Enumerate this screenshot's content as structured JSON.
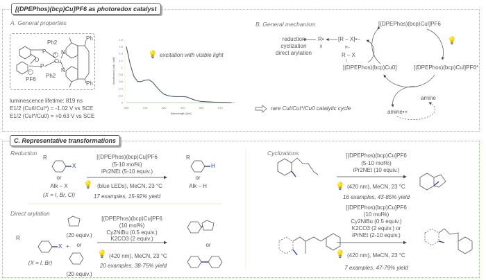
{
  "title": "[(DPEPhos)(bcp)Cu]PF6 as photoredox catalyst",
  "panelA": {
    "label": "A. General properties",
    "structure_labels": [
      "Ph2",
      "Ph2",
      "P",
      "P",
      "Cu",
      "O",
      "N",
      "N",
      "Ph",
      "Ph",
      "PF6",
      "+",
      "−"
    ],
    "lifetime": "luminescence lifetime: 819 ns",
    "e1": "E1/2 (CuII/CuI*) = -1.02 V vs SCE",
    "e2": "E1/2 (CuI*/Cu0) = +0.63 V vs SCE",
    "excitation": "excitation with visible light"
  },
  "chart_data": {
    "type": "line",
    "xlabel": "Wavelength [nm]",
    "ylabel": "Absorbance [arb. unit]",
    "xticks": [
      320,
      370,
      420,
      470,
      520,
      570
    ],
    "yticks": [
      "0",
      "0,2",
      "0,4",
      "0,6",
      "0,8",
      "1",
      "1,2",
      "1,4",
      "1,6",
      "1,8"
    ],
    "xlim": [
      320,
      610
    ],
    "ylim": [
      0,
      1.8
    ],
    "x": [
      320,
      330,
      340,
      350,
      360,
      370,
      380,
      390,
      400,
      410,
      420,
      430,
      440,
      450,
      460,
      470,
      480,
      490,
      500,
      510,
      520,
      540,
      560,
      580,
      600
    ],
    "y": [
      1.6,
      1.1,
      0.75,
      0.6,
      0.6,
      0.64,
      0.65,
      0.58,
      0.45,
      0.33,
      0.24,
      0.2,
      0.18,
      0.17,
      0.17,
      0.17,
      0.16,
      0.12,
      0.08,
      0.05,
      0.03,
      0.02,
      0.01,
      0.005,
      0
    ],
    "line_color": "#3c4a5a",
    "grid": false
  },
  "panelB": {
    "label": "B. General mechanism",
    "cu1": "[(DPEPhos)(bcp)CuI]PF6",
    "cu1_excited": "[(DPEPhos)(bcp)CuI]PF6*",
    "cu0": "[(DPEPhos)(bcp)Cu0]",
    "amine": "amine",
    "amine_radical": "amine•+",
    "rx": "R – X",
    "rx_radical": "[R – X]•−",
    "radical": "R•",
    "num_I": "I",
    "num_I_rad": "I•−",
    "num_II": "II",
    "outcomes": [
      "reduction",
      "cyclization",
      "direct arylation"
    ],
    "note": "rare CuI/CuI*/Cu0 catalytic cycle"
  },
  "panelC": {
    "label": "C. Representative transformations",
    "reduction": {
      "label": "Reduction",
      "reactant_x": "X",
      "or": "or",
      "alk_x": "Alk – X",
      "x_def": "(X = I, Br, Cl)",
      "conditions": [
        "[(DPEPhos)(bcp)Cu]PF6",
        "(5-10 mol%)",
        "iPr2NEt (5-10 equiv.)"
      ],
      "light": "(blue LEDs), MeCN, 23 °C",
      "yield": "17 examples, 15-92% yield",
      "product_h": "H",
      "alk_h": "Alk – H",
      "R": "R"
    },
    "arylation": {
      "label": "Direct arylation",
      "x_def": "(X = I, Br)",
      "plus": "+",
      "or": "or",
      "equiv1": "(20 equiv.)",
      "equiv2": "(20 equiv.)",
      "conditions": [
        "[(DPEPhos)(bcp)Cu]PF6",
        "(10 mol%)",
        "Cy2NiBu (0.5 equiv.)",
        "K2CO3 (2 equiv.)"
      ],
      "light": "(420 nm), MeCN, 23 °C",
      "yield": "20 examples, 38-75% yield"
    },
    "cyclizations": {
      "label": "Cyclizations",
      "cond1": [
        "[(DPEPhos)(bcp)Cu]PF6",
        "(5-10 mol%)",
        "iPr2NEt (10 equiv.)"
      ],
      "light1": "(420 nm), MeCN, 23 °C",
      "yield1": "16 examples, 43-85% yield",
      "cond2": [
        "[(DPEPhos)(bcp)Cu]PF6",
        "(10 mol%)",
        "Cy2NiBu (0.5 equiv.)",
        "K2CO3 (2 equiv.) or",
        "iPrNEt (2-10 equiv.)"
      ],
      "light2": "(420 nm), MeCN, 23 °C",
      "yield2": "7 examples, 47-79% yield"
    }
  },
  "colors": {
    "border": "#9bbf8a",
    "bond_highlight": "#2a3f9a",
    "arrow": "#444"
  }
}
